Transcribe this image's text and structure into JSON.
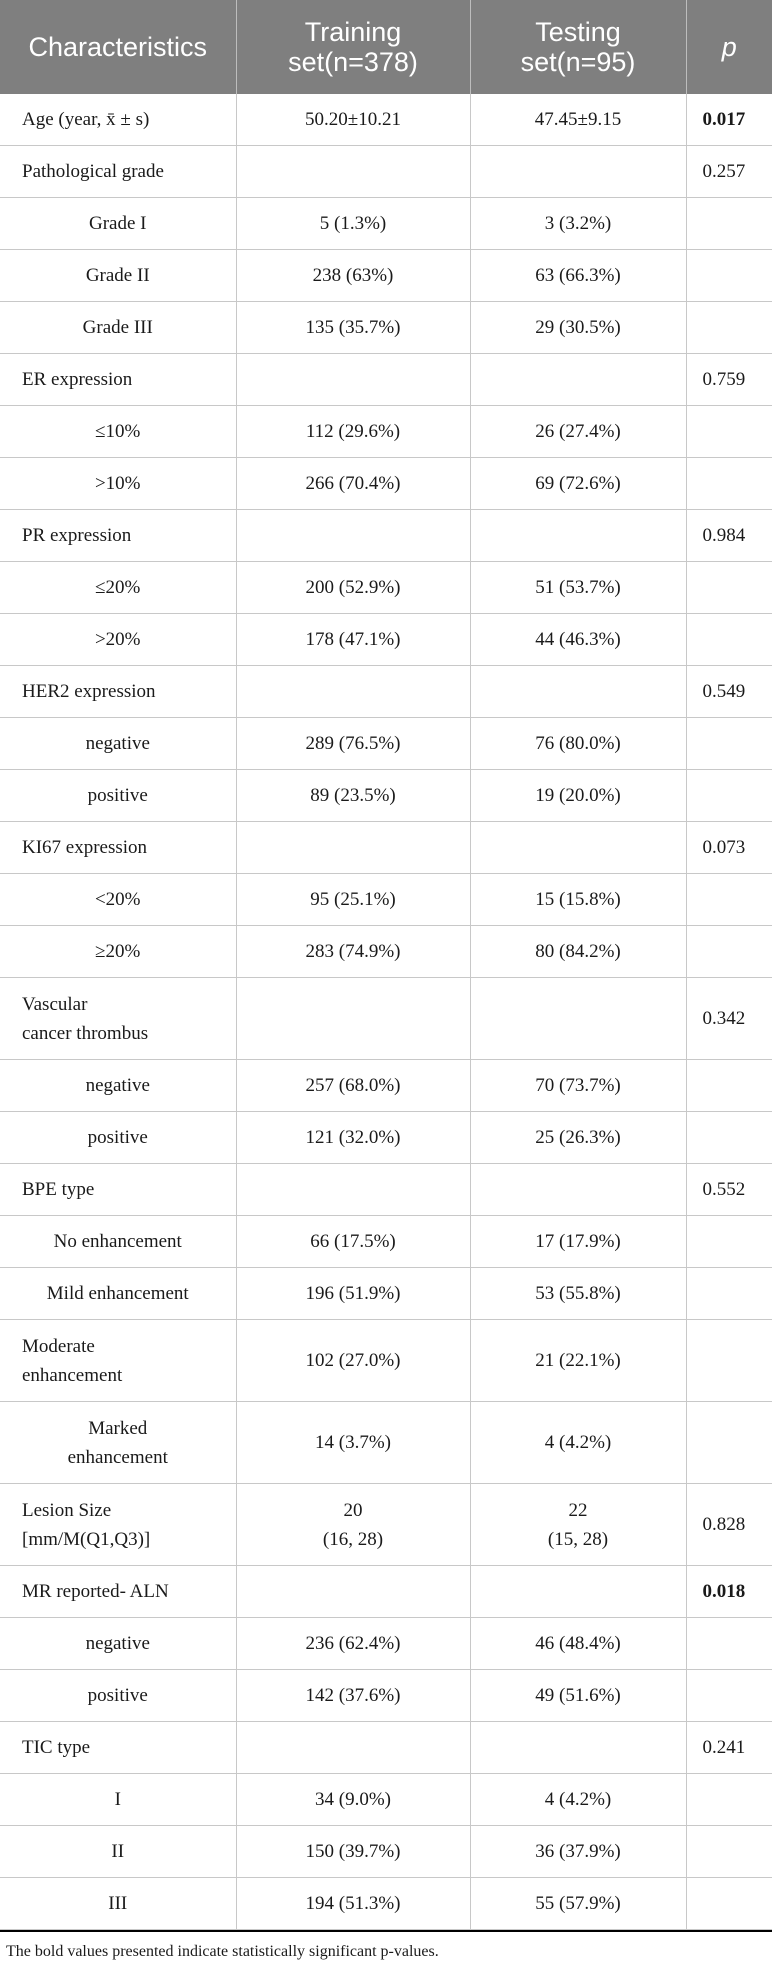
{
  "header": {
    "col1": "Characteristics",
    "col2_line1": "Training",
    "col2_line2": "set(n=378)",
    "col3_line1": "Testing",
    "col3_line2": "set(n=95)",
    "col4": "p"
  },
  "rows": [
    {
      "label": "Age (year, x̄ ± s)",
      "train": "50.20±10.21",
      "test": "47.45±9.15",
      "p": "0.017",
      "p_bold": true,
      "sub": false,
      "tall": false
    },
    {
      "label": "Pathological grade",
      "train": "",
      "test": "",
      "p": "0.257",
      "sub": false,
      "tall": false
    },
    {
      "label": "Grade I",
      "train": "5 (1.3%)",
      "test": "3 (3.2%)",
      "p": "",
      "sub": true,
      "tall": false
    },
    {
      "label": "Grade II",
      "train": "238 (63%)",
      "test": "63 (66.3%)",
      "p": "",
      "sub": true,
      "tall": false
    },
    {
      "label": "Grade III",
      "train": "135 (35.7%)",
      "test": "29 (30.5%)",
      "p": "",
      "sub": true,
      "tall": false
    },
    {
      "label": "ER expression",
      "train": "",
      "test": "",
      "p": "0.759",
      "sub": false,
      "tall": false
    },
    {
      "label": "≤10%",
      "train": "112 (29.6%)",
      "test": "26 (27.4%)",
      "p": "",
      "sub": true,
      "tall": false
    },
    {
      "label": ">10%",
      "train": "266 (70.4%)",
      "test": "69 (72.6%)",
      "p": "",
      "sub": true,
      "tall": false
    },
    {
      "label": "PR expression",
      "train": "",
      "test": "",
      "p": "0.984",
      "sub": false,
      "tall": false
    },
    {
      "label": "≤20%",
      "train": "200 (52.9%)",
      "test": "51 (53.7%)",
      "p": "",
      "sub": true,
      "tall": false
    },
    {
      "label": ">20%",
      "train": "178 (47.1%)",
      "test": "44 (46.3%)",
      "p": "",
      "sub": true,
      "tall": false
    },
    {
      "label": "HER2 expression",
      "train": "",
      "test": "",
      "p": "0.549",
      "sub": false,
      "tall": false
    },
    {
      "label": "negative",
      "train": "289 (76.5%)",
      "test": "76 (80.0%)",
      "p": "",
      "sub": true,
      "tall": false
    },
    {
      "label": "positive",
      "train": "89 (23.5%)",
      "test": "19 (20.0%)",
      "p": "",
      "sub": true,
      "tall": false
    },
    {
      "label": "KI67 expression",
      "train": "",
      "test": "",
      "p": "0.073",
      "sub": false,
      "tall": false
    },
    {
      "label": "<20%",
      "train": "95 (25.1%)",
      "test": "15 (15.8%)",
      "p": "",
      "sub": true,
      "tall": false
    },
    {
      "label": "≥20%",
      "train": "283 (74.9%)",
      "test": "80 (84.2%)",
      "p": "",
      "sub": true,
      "tall": false
    },
    {
      "label": "Vascular",
      "label2": "cancer thrombus",
      "train": "",
      "test": "",
      "p": "0.342",
      "sub": false,
      "tall": true
    },
    {
      "label": "negative",
      "train": "257 (68.0%)",
      "test": "70 (73.7%)",
      "p": "",
      "sub": true,
      "tall": false
    },
    {
      "label": "positive",
      "train": "121 (32.0%)",
      "test": "25 (26.3%)",
      "p": "",
      "sub": true,
      "tall": false
    },
    {
      "label": "BPE type",
      "train": "",
      "test": "",
      "p": "0.552",
      "sub": false,
      "tall": false
    },
    {
      "label": "No enhancement",
      "train": "66 (17.5%)",
      "test": "17 (17.9%)",
      "p": "",
      "sub": true,
      "tall": false
    },
    {
      "label": "Mild enhancement",
      "train": "196 (51.9%)",
      "test": "53 (55.8%)",
      "p": "",
      "sub": true,
      "tall": false
    },
    {
      "label": "Moderate",
      "label2": "enhancement",
      "train": "102 (27.0%)",
      "test": "21 (22.1%)",
      "p": "",
      "sub": false,
      "tall": true
    },
    {
      "label": "Marked",
      "label2": "enhancement",
      "train": "14 (3.7%)",
      "test": "4 (4.2%)",
      "p": "",
      "sub": true,
      "tall": true
    },
    {
      "label": "Lesion Size",
      "label2": "[mm/M(Q1,Q3)]",
      "train": "20",
      "train2": "(16, 28)",
      "test": "22",
      "test2": "(15, 28)",
      "p": "0.828",
      "sub": false,
      "tall": true
    },
    {
      "label": "MR reported- ALN",
      "train": "",
      "test": "",
      "p": "0.018",
      "p_bold": true,
      "sub": false,
      "tall": false
    },
    {
      "label": "negative",
      "train": "236 (62.4%)",
      "test": "46 (48.4%)",
      "p": "",
      "sub": true,
      "tall": false
    },
    {
      "label": "positive",
      "train": "142 (37.6%)",
      "test": "49 (51.6%)",
      "p": "",
      "sub": true,
      "tall": false
    },
    {
      "label": "TIC type",
      "train": "",
      "test": "",
      "p": "0.241",
      "sub": false,
      "tall": false
    },
    {
      "label": "I",
      "train": "34 (9.0%)",
      "test": "4 (4.2%)",
      "p": "",
      "sub": true,
      "tall": false
    },
    {
      "label": "II",
      "train": "150 (39.7%)",
      "test": "36 (37.9%)",
      "p": "",
      "sub": true,
      "tall": false
    },
    {
      "label": "III",
      "train": "194 (51.3%)",
      "test": "55 (57.9%)",
      "p": "",
      "sub": true,
      "tall": false
    }
  ],
  "footnote": "The bold values presented  indicate statistically significant p-values."
}
